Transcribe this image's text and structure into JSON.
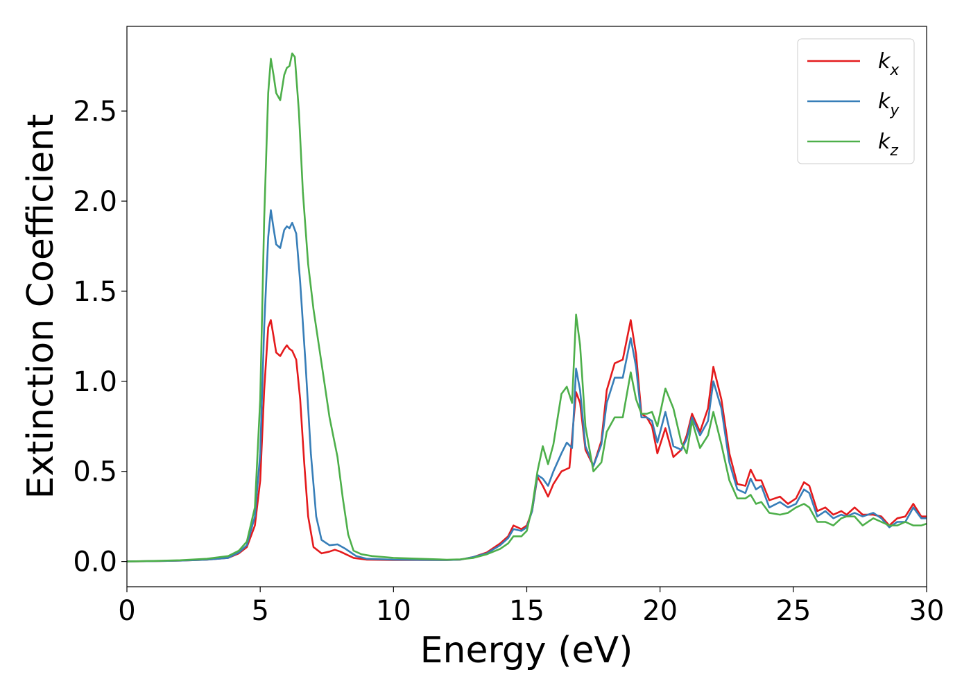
{
  "chart_data": {
    "type": "line",
    "title": "",
    "xlabel": "Energy (eV)",
    "ylabel": "Extinction Coefficient",
    "xlim": [
      0,
      30
    ],
    "ylim": [
      -0.14,
      2.97
    ],
    "xticks": [
      0,
      5,
      10,
      15,
      20,
      25,
      30
    ],
    "yticks": [
      0.0,
      0.5,
      1.0,
      1.5,
      2.0,
      2.5
    ],
    "xtick_labels": [
      "0",
      "5",
      "10",
      "15",
      "20",
      "25",
      "30"
    ],
    "ytick_labels": [
      "0.0",
      "0.5",
      "1.0",
      "1.5",
      "2.0",
      "2.5"
    ],
    "grid": false,
    "legend_position": "top-right",
    "series": [
      {
        "name": "k",
        "subscript": "x",
        "color": "#e41a1c",
        "points": [
          [
            0,
            0
          ],
          [
            1,
            0.002
          ],
          [
            2,
            0.005
          ],
          [
            3,
            0.01
          ],
          [
            3.8,
            0.02
          ],
          [
            4.2,
            0.045
          ],
          [
            4.5,
            0.08
          ],
          [
            4.8,
            0.2
          ],
          [
            5.0,
            0.45
          ],
          [
            5.15,
            0.95
          ],
          [
            5.3,
            1.3
          ],
          [
            5.4,
            1.34
          ],
          [
            5.5,
            1.25
          ],
          [
            5.6,
            1.16
          ],
          [
            5.75,
            1.14
          ],
          [
            5.9,
            1.18
          ],
          [
            6.0,
            1.2
          ],
          [
            6.1,
            1.18
          ],
          [
            6.2,
            1.17
          ],
          [
            6.35,
            1.12
          ],
          [
            6.5,
            0.9
          ],
          [
            6.65,
            0.55
          ],
          [
            6.8,
            0.25
          ],
          [
            7.0,
            0.08
          ],
          [
            7.3,
            0.045
          ],
          [
            7.6,
            0.055
          ],
          [
            7.8,
            0.065
          ],
          [
            8.0,
            0.055
          ],
          [
            8.5,
            0.02
          ],
          [
            9,
            0.01
          ],
          [
            10,
            0.008
          ],
          [
            12,
            0.008
          ],
          [
            12.5,
            0.01
          ],
          [
            13,
            0.025
          ],
          [
            13.5,
            0.05
          ],
          [
            14,
            0.1
          ],
          [
            14.3,
            0.14
          ],
          [
            14.5,
            0.2
          ],
          [
            14.8,
            0.18
          ],
          [
            15.0,
            0.2
          ],
          [
            15.2,
            0.28
          ],
          [
            15.4,
            0.47
          ],
          [
            15.6,
            0.42
          ],
          [
            15.8,
            0.36
          ],
          [
            16.0,
            0.43
          ],
          [
            16.3,
            0.5
          ],
          [
            16.6,
            0.52
          ],
          [
            16.85,
            0.94
          ],
          [
            17.0,
            0.88
          ],
          [
            17.2,
            0.62
          ],
          [
            17.5,
            0.53
          ],
          [
            17.8,
            0.67
          ],
          [
            18.0,
            0.95
          ],
          [
            18.3,
            1.1
          ],
          [
            18.6,
            1.12
          ],
          [
            18.9,
            1.34
          ],
          [
            19.1,
            1.15
          ],
          [
            19.3,
            0.82
          ],
          [
            19.5,
            0.8
          ],
          [
            19.7,
            0.75
          ],
          [
            19.9,
            0.6
          ],
          [
            20.2,
            0.74
          ],
          [
            20.5,
            0.58
          ],
          [
            20.8,
            0.62
          ],
          [
            21.0,
            0.7
          ],
          [
            21.2,
            0.82
          ],
          [
            21.5,
            0.72
          ],
          [
            21.8,
            0.85
          ],
          [
            22.0,
            1.08
          ],
          [
            22.3,
            0.9
          ],
          [
            22.6,
            0.6
          ],
          [
            22.9,
            0.43
          ],
          [
            23.2,
            0.42
          ],
          [
            23.4,
            0.51
          ],
          [
            23.6,
            0.45
          ],
          [
            23.8,
            0.45
          ],
          [
            24.1,
            0.34
          ],
          [
            24.5,
            0.36
          ],
          [
            24.8,
            0.32
          ],
          [
            25.1,
            0.35
          ],
          [
            25.4,
            0.44
          ],
          [
            25.6,
            0.42
          ],
          [
            25.9,
            0.28
          ],
          [
            26.2,
            0.3
          ],
          [
            26.5,
            0.26
          ],
          [
            26.8,
            0.28
          ],
          [
            27.0,
            0.26
          ],
          [
            27.3,
            0.3
          ],
          [
            27.6,
            0.26
          ],
          [
            28.0,
            0.26
          ],
          [
            28.3,
            0.25
          ],
          [
            28.6,
            0.2
          ],
          [
            28.9,
            0.24
          ],
          [
            29.2,
            0.25
          ],
          [
            29.5,
            0.32
          ],
          [
            29.8,
            0.25
          ],
          [
            30,
            0.25
          ]
        ]
      },
      {
        "name": "k",
        "subscript": "y",
        "color": "#377eb8",
        "points": [
          [
            0,
            0
          ],
          [
            1,
            0.002
          ],
          [
            2,
            0.005
          ],
          [
            3,
            0.01
          ],
          [
            3.8,
            0.02
          ],
          [
            4.2,
            0.05
          ],
          [
            4.5,
            0.09
          ],
          [
            4.8,
            0.25
          ],
          [
            5.0,
            0.6
          ],
          [
            5.15,
            1.3
          ],
          [
            5.3,
            1.8
          ],
          [
            5.4,
            1.95
          ],
          [
            5.5,
            1.85
          ],
          [
            5.6,
            1.76
          ],
          [
            5.75,
            1.74
          ],
          [
            5.9,
            1.84
          ],
          [
            6.0,
            1.86
          ],
          [
            6.1,
            1.85
          ],
          [
            6.2,
            1.88
          ],
          [
            6.35,
            1.82
          ],
          [
            6.5,
            1.55
          ],
          [
            6.7,
            1.1
          ],
          [
            6.9,
            0.6
          ],
          [
            7.1,
            0.25
          ],
          [
            7.3,
            0.12
          ],
          [
            7.6,
            0.09
          ],
          [
            7.9,
            0.095
          ],
          [
            8.2,
            0.07
          ],
          [
            8.6,
            0.03
          ],
          [
            9,
            0.015
          ],
          [
            10,
            0.01
          ],
          [
            12,
            0.008
          ],
          [
            12.5,
            0.01
          ],
          [
            13,
            0.025
          ],
          [
            13.5,
            0.045
          ],
          [
            14,
            0.09
          ],
          [
            14.3,
            0.13
          ],
          [
            14.5,
            0.18
          ],
          [
            14.8,
            0.17
          ],
          [
            15.0,
            0.19
          ],
          [
            15.2,
            0.28
          ],
          [
            15.4,
            0.48
          ],
          [
            15.6,
            0.46
          ],
          [
            15.8,
            0.42
          ],
          [
            16.0,
            0.5
          ],
          [
            16.3,
            0.6
          ],
          [
            16.5,
            0.66
          ],
          [
            16.7,
            0.63
          ],
          [
            16.85,
            1.07
          ],
          [
            17.0,
            0.95
          ],
          [
            17.2,
            0.64
          ],
          [
            17.5,
            0.53
          ],
          [
            17.8,
            0.65
          ],
          [
            18.0,
            0.88
          ],
          [
            18.3,
            1.02
          ],
          [
            18.6,
            1.02
          ],
          [
            18.9,
            1.24
          ],
          [
            19.1,
            1.08
          ],
          [
            19.3,
            0.8
          ],
          [
            19.5,
            0.8
          ],
          [
            19.7,
            0.78
          ],
          [
            19.9,
            0.66
          ],
          [
            20.2,
            0.83
          ],
          [
            20.5,
            0.64
          ],
          [
            20.8,
            0.62
          ],
          [
            21.0,
            0.68
          ],
          [
            21.2,
            0.8
          ],
          [
            21.5,
            0.7
          ],
          [
            21.8,
            0.78
          ],
          [
            22.0,
            1.0
          ],
          [
            22.3,
            0.85
          ],
          [
            22.6,
            0.55
          ],
          [
            22.9,
            0.4
          ],
          [
            23.2,
            0.38
          ],
          [
            23.4,
            0.46
          ],
          [
            23.6,
            0.4
          ],
          [
            23.8,
            0.42
          ],
          [
            24.1,
            0.3
          ],
          [
            24.5,
            0.33
          ],
          [
            24.8,
            0.3
          ],
          [
            25.1,
            0.32
          ],
          [
            25.4,
            0.4
          ],
          [
            25.6,
            0.38
          ],
          [
            25.9,
            0.25
          ],
          [
            26.2,
            0.28
          ],
          [
            26.5,
            0.24
          ],
          [
            26.8,
            0.26
          ],
          [
            27.0,
            0.25
          ],
          [
            27.3,
            0.27
          ],
          [
            27.6,
            0.25
          ],
          [
            28.0,
            0.27
          ],
          [
            28.3,
            0.24
          ],
          [
            28.6,
            0.19
          ],
          [
            28.9,
            0.22
          ],
          [
            29.2,
            0.22
          ],
          [
            29.5,
            0.3
          ],
          [
            29.8,
            0.24
          ],
          [
            30,
            0.24
          ]
        ]
      },
      {
        "name": "k",
        "subscript": "z",
        "color": "#4daf4a",
        "points": [
          [
            0,
            0
          ],
          [
            1,
            0.003
          ],
          [
            2,
            0.007
          ],
          [
            3,
            0.015
          ],
          [
            3.8,
            0.03
          ],
          [
            4.2,
            0.06
          ],
          [
            4.5,
            0.11
          ],
          [
            4.8,
            0.3
          ],
          [
            5.0,
            0.9
          ],
          [
            5.15,
            1.9
          ],
          [
            5.3,
            2.6
          ],
          [
            5.4,
            2.79
          ],
          [
            5.5,
            2.7
          ],
          [
            5.6,
            2.6
          ],
          [
            5.75,
            2.56
          ],
          [
            5.9,
            2.7
          ],
          [
            6.0,
            2.74
          ],
          [
            6.1,
            2.75
          ],
          [
            6.2,
            2.82
          ],
          [
            6.3,
            2.8
          ],
          [
            6.45,
            2.5
          ],
          [
            6.6,
            2.05
          ],
          [
            6.8,
            1.65
          ],
          [
            7.0,
            1.4
          ],
          [
            7.3,
            1.1
          ],
          [
            7.6,
            0.8
          ],
          [
            7.9,
            0.58
          ],
          [
            8.1,
            0.35
          ],
          [
            8.3,
            0.15
          ],
          [
            8.5,
            0.06
          ],
          [
            8.8,
            0.04
          ],
          [
            9.2,
            0.03
          ],
          [
            10,
            0.02
          ],
          [
            12,
            0.01
          ],
          [
            12.5,
            0.012
          ],
          [
            13,
            0.02
          ],
          [
            13.5,
            0.04
          ],
          [
            14,
            0.07
          ],
          [
            14.3,
            0.1
          ],
          [
            14.5,
            0.14
          ],
          [
            14.8,
            0.14
          ],
          [
            15.0,
            0.17
          ],
          [
            15.2,
            0.3
          ],
          [
            15.4,
            0.5
          ],
          [
            15.6,
            0.64
          ],
          [
            15.8,
            0.54
          ],
          [
            16.0,
            0.65
          ],
          [
            16.3,
            0.93
          ],
          [
            16.5,
            0.97
          ],
          [
            16.7,
            0.88
          ],
          [
            16.85,
            1.37
          ],
          [
            17.0,
            1.2
          ],
          [
            17.2,
            0.75
          ],
          [
            17.5,
            0.5
          ],
          [
            17.8,
            0.55
          ],
          [
            18.0,
            0.72
          ],
          [
            18.3,
            0.8
          ],
          [
            18.6,
            0.8
          ],
          [
            18.9,
            1.05
          ],
          [
            19.1,
            0.9
          ],
          [
            19.3,
            0.82
          ],
          [
            19.5,
            0.82
          ],
          [
            19.7,
            0.83
          ],
          [
            19.9,
            0.75
          ],
          [
            20.2,
            0.96
          ],
          [
            20.5,
            0.85
          ],
          [
            20.8,
            0.66
          ],
          [
            21.0,
            0.6
          ],
          [
            21.2,
            0.78
          ],
          [
            21.5,
            0.63
          ],
          [
            21.8,
            0.7
          ],
          [
            22.0,
            0.83
          ],
          [
            22.3,
            0.65
          ],
          [
            22.6,
            0.45
          ],
          [
            22.9,
            0.35
          ],
          [
            23.2,
            0.35
          ],
          [
            23.4,
            0.37
          ],
          [
            23.6,
            0.32
          ],
          [
            23.8,
            0.33
          ],
          [
            24.1,
            0.27
          ],
          [
            24.5,
            0.26
          ],
          [
            24.8,
            0.27
          ],
          [
            25.1,
            0.3
          ],
          [
            25.4,
            0.32
          ],
          [
            25.6,
            0.3
          ],
          [
            25.9,
            0.22
          ],
          [
            26.2,
            0.22
          ],
          [
            26.5,
            0.2
          ],
          [
            26.8,
            0.24
          ],
          [
            27.0,
            0.25
          ],
          [
            27.3,
            0.25
          ],
          [
            27.6,
            0.2
          ],
          [
            28.0,
            0.24
          ],
          [
            28.3,
            0.22
          ],
          [
            28.6,
            0.2
          ],
          [
            28.9,
            0.2
          ],
          [
            29.2,
            0.22
          ],
          [
            29.5,
            0.2
          ],
          [
            29.8,
            0.2
          ],
          [
            30,
            0.21
          ]
        ]
      }
    ]
  }
}
